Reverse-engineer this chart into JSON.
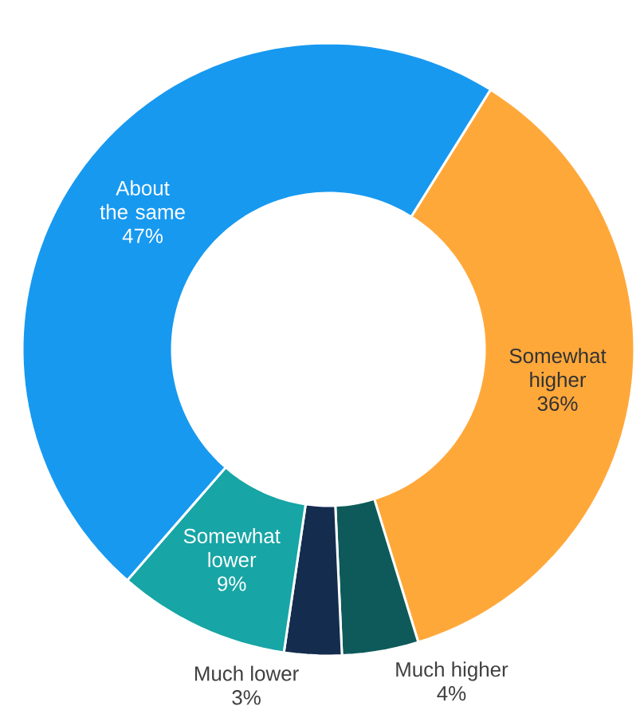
{
  "chart_data": {
    "type": "donut",
    "categories": [
      "Somewhat higher",
      "Much higher",
      "Much lower",
      "Somewhat lower",
      "About the same"
    ],
    "values": [
      36,
      4,
      3,
      9,
      47
    ],
    "value_labels": [
      "36%",
      "4%",
      "3%",
      "9%",
      "47%"
    ],
    "colors": [
      "#ffa83a",
      "#0e5a5a",
      "#142c4e",
      "#17a5a5",
      "#1799f0"
    ]
  }
}
